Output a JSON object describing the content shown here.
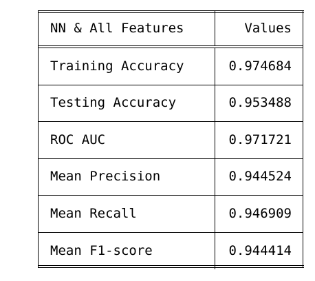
{
  "table": {
    "header": {
      "label": "NN & All Features",
      "value": "Values"
    },
    "rows": [
      {
        "label": "Training Accuracy",
        "value": "0.974684"
      },
      {
        "label": "Testing Accuracy",
        "value": "0.953488"
      },
      {
        "label": "ROC AUC",
        "value": "0.971721"
      },
      {
        "label": "Mean Precision",
        "value": "0.944524"
      },
      {
        "label": "Mean Recall",
        "value": "0.946909"
      },
      {
        "label": "Mean F1-score",
        "value": "0.944414"
      }
    ]
  }
}
